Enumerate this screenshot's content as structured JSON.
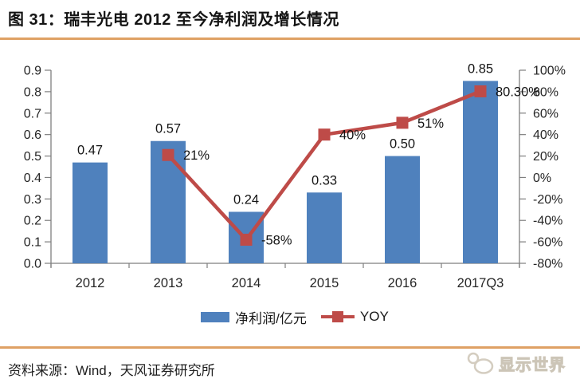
{
  "page": {
    "title": "图 31：瑞丰光电 2012 至今净利润及增长情况",
    "source_note": "资料来源：Wind，天风证券研究所",
    "watermark": {
      "text": "显示世界",
      "icon": "overlapping-circles-logo"
    },
    "accent_rule_color": "#DFA164"
  },
  "chart_data": {
    "type": "combo",
    "title": "瑞丰光电 2012 至今净利润及增长情况",
    "categories": [
      "2012",
      "2013",
      "2014",
      "2015",
      "2016",
      "2017Q3"
    ],
    "series": [
      {
        "name": "净利润/亿元",
        "type": "bar",
        "axis": "left",
        "color": "#4F81BD",
        "values": [
          0.47,
          0.57,
          0.24,
          0.33,
          0.5,
          0.85
        ],
        "data_labels": [
          "0.47",
          "0.57",
          "0.24",
          "0.33",
          "0.50",
          "0.85"
        ]
      },
      {
        "name": "YOY",
        "type": "line",
        "axis": "right",
        "color": "#BE4B48",
        "values": [
          null,
          21,
          -58,
          40,
          51,
          80.3
        ],
        "data_labels": [
          null,
          "21%",
          "-58%",
          "40%",
          "51%",
          "80.30%"
        ]
      }
    ],
    "left_axis": {
      "min": 0,
      "max": 0.9,
      "step": 0.1,
      "labels": [
        "0.9",
        "0.8",
        "0.7",
        "0.6",
        "0.5",
        "0.4",
        "0.3",
        "0.2",
        "0.1",
        "0.0"
      ]
    },
    "right_axis": {
      "min": -80,
      "max": 100,
      "step": 20,
      "labels": [
        "100%",
        "80%",
        "60%",
        "40%",
        "20%",
        "0%",
        "-20%",
        "-40%",
        "-60%",
        "-80%"
      ]
    },
    "legend": {
      "position": "bottom",
      "items": [
        {
          "label": "净利润/亿元",
          "swatch": "rect",
          "color": "#4F81BD"
        },
        {
          "label": "YOY",
          "swatch": "line-square",
          "color": "#BE4B48"
        }
      ]
    },
    "grid": "off",
    "axis_color": "#7F7F7F"
  }
}
